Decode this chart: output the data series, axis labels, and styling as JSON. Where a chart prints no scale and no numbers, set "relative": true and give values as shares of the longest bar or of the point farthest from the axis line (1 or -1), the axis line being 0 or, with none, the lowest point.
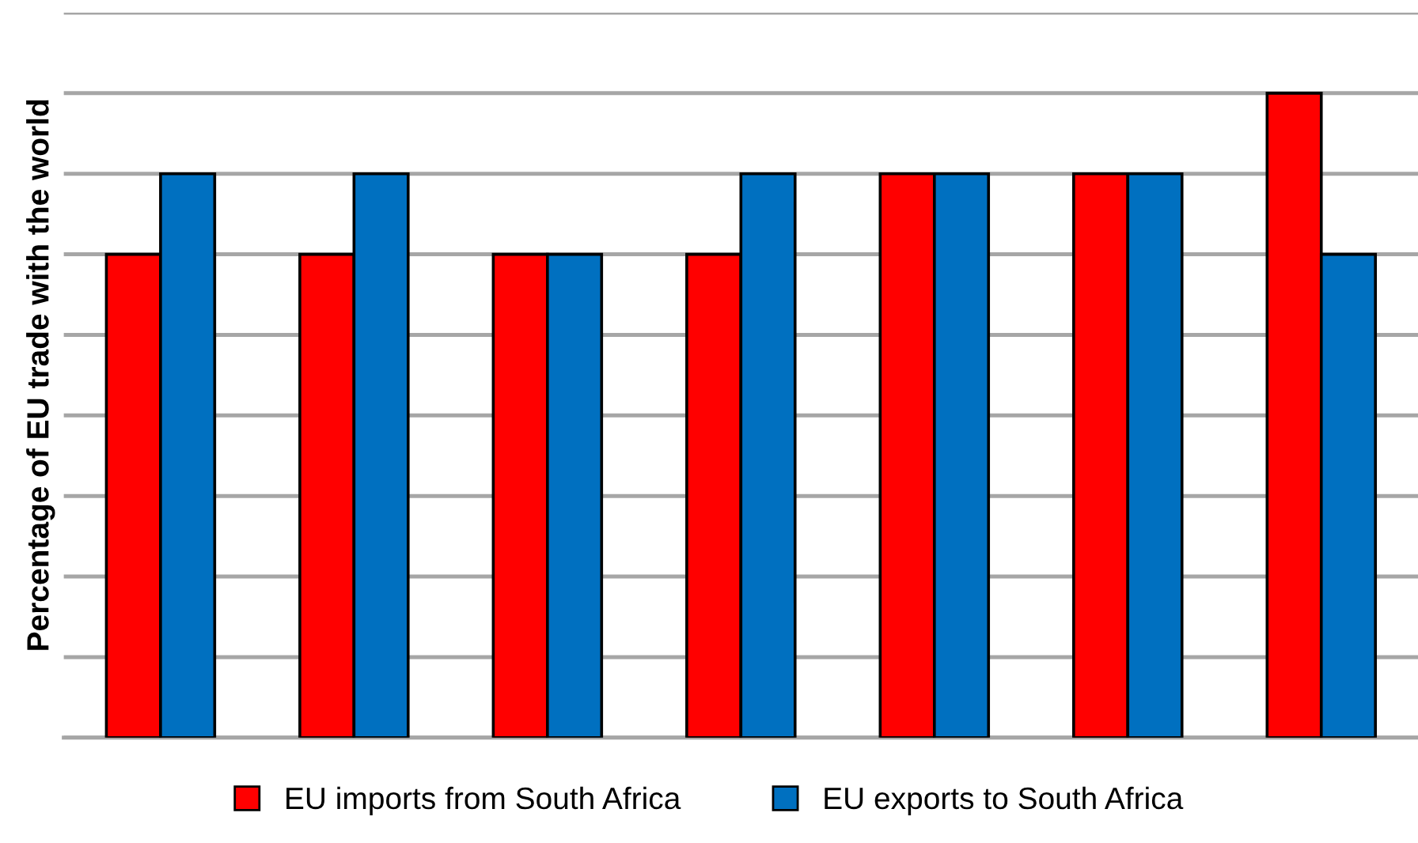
{
  "chart_data": {
    "type": "bar",
    "ylabel": "Percentage of EU trade with the world",
    "relative": true,
    "grid": "y",
    "legend": "bottom",
    "categories": [
      null,
      null,
      null,
      null,
      null,
      null,
      null
    ],
    "series": [
      {
        "name": "EU imports from South Africa",
        "color": "#ff0000",
        "values": [
          0.75,
          0.75,
          0.75,
          0.75,
          0.875,
          0.875,
          1.0
        ]
      },
      {
        "name": "EU exports to South Africa",
        "color": "#0070c0",
        "values": [
          0.875,
          0.875,
          0.75,
          0.875,
          0.875,
          0.875,
          0.75
        ]
      }
    ]
  }
}
